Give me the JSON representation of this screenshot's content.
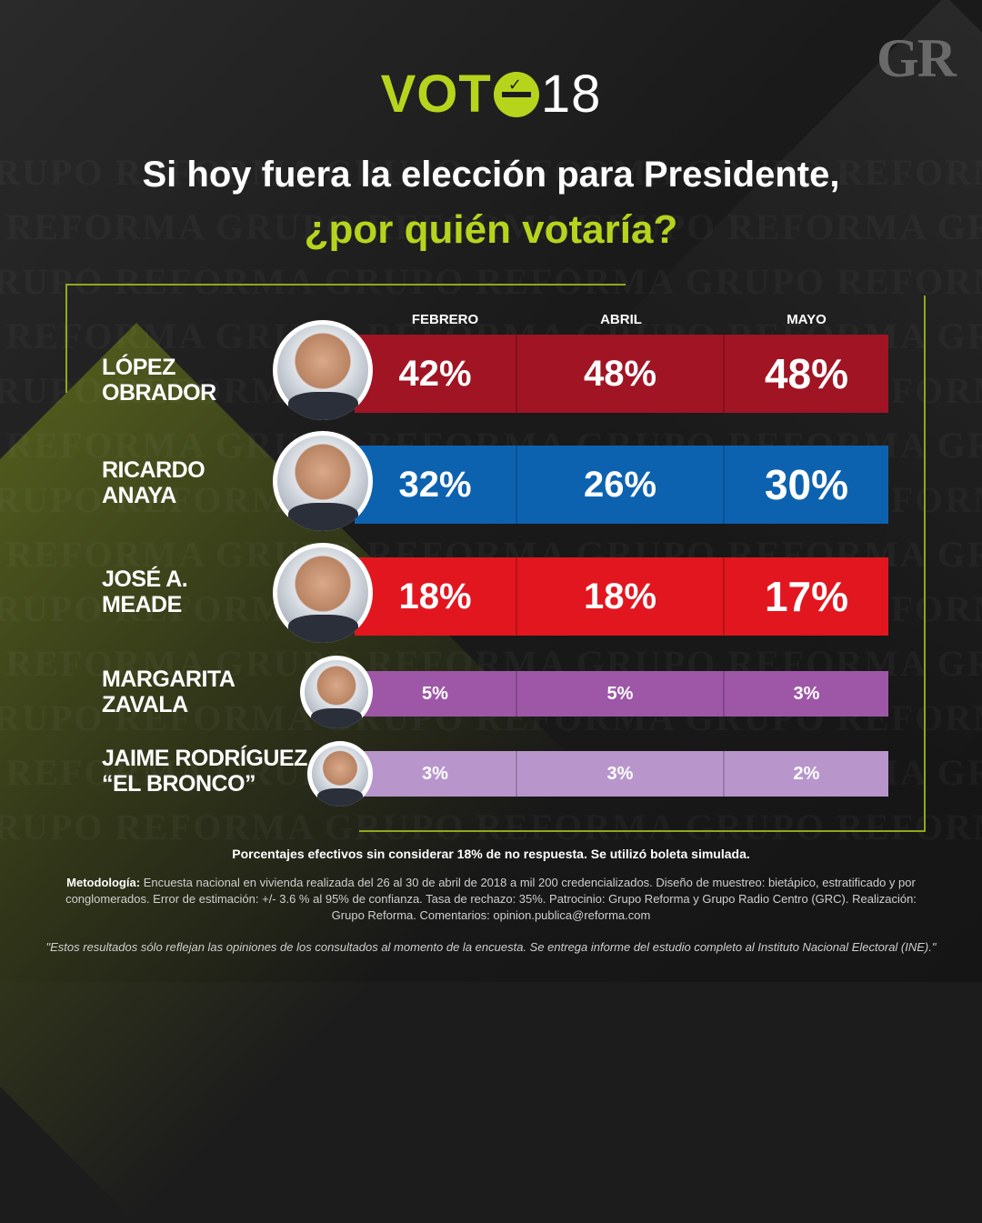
{
  "brand": {
    "gr_logo": "GR",
    "voto_text": "VOT",
    "voto_number": "18"
  },
  "title": {
    "line1": "Si hoy fuera la elección para Presidente,",
    "line2": "¿por quién votaría?"
  },
  "colors": {
    "accent": "#b7d41d",
    "lopez": "#a01424",
    "anaya": "#0d62b0",
    "meade": "#e2161f",
    "zavala": "#9d57a6",
    "bronco": "#b896cc"
  },
  "chart_data": {
    "type": "table",
    "columns": [
      "FEBRERO",
      "ABRIL",
      "MAYO"
    ],
    "unit": "%",
    "rows": [
      {
        "name_line1": "LÓPEZ",
        "name_line2": "OBRADOR",
        "values": [
          42,
          48,
          48
        ],
        "labels": [
          "42%",
          "48%",
          "48%"
        ],
        "color": "#a01424"
      },
      {
        "name_line1": "RICARDO",
        "name_line2": "ANAYA",
        "values": [
          32,
          26,
          30
        ],
        "labels": [
          "32%",
          "26%",
          "30%"
        ],
        "color": "#0d62b0"
      },
      {
        "name_line1": "JOSÉ A.",
        "name_line2": "MEADE",
        "values": [
          18,
          18,
          17
        ],
        "labels": [
          "18%",
          "18%",
          "17%"
        ],
        "color": "#e2161f"
      },
      {
        "name_line1": "MARGARITA",
        "name_line2": "ZAVALA",
        "values": [
          5,
          5,
          3
        ],
        "labels": [
          "5%",
          "5%",
          "3%"
        ],
        "color": "#9d57a6"
      },
      {
        "name_line1": "JAIME RODRÍGUEZ",
        "name_line2": "“EL BRONCO”",
        "values": [
          3,
          3,
          2
        ],
        "labels": [
          "3%",
          "3%",
          "2%"
        ],
        "color": "#b896cc"
      }
    ]
  },
  "footer": {
    "note": "Porcentajes efectivos sin considerar 18% de no respuesta. Se utilizó boleta simulada.",
    "method_label": "Metodología:",
    "method_text": "Encuesta nacional en vivienda realizada del 26 al 30 de abril de 2018 a mil 200 credencializados. Diseño de muestreo: bietápico, estratificado y por conglomerados. Error de estimación: +/- 3.6 % al 95% de confianza. Tasa de rechazo: 35%. Patrocinio: Grupo Reforma y Grupo Radio Centro (GRC). Realización: Grupo Reforma. Comentarios: opinion.publica@reforma.com",
    "disclaimer": "\"Estos resultados sólo reflejan las opiniones de los consultados al momento de la encuesta. Se entrega informe del estudio completo al Instituto Nacional Electoral (INE).\""
  }
}
